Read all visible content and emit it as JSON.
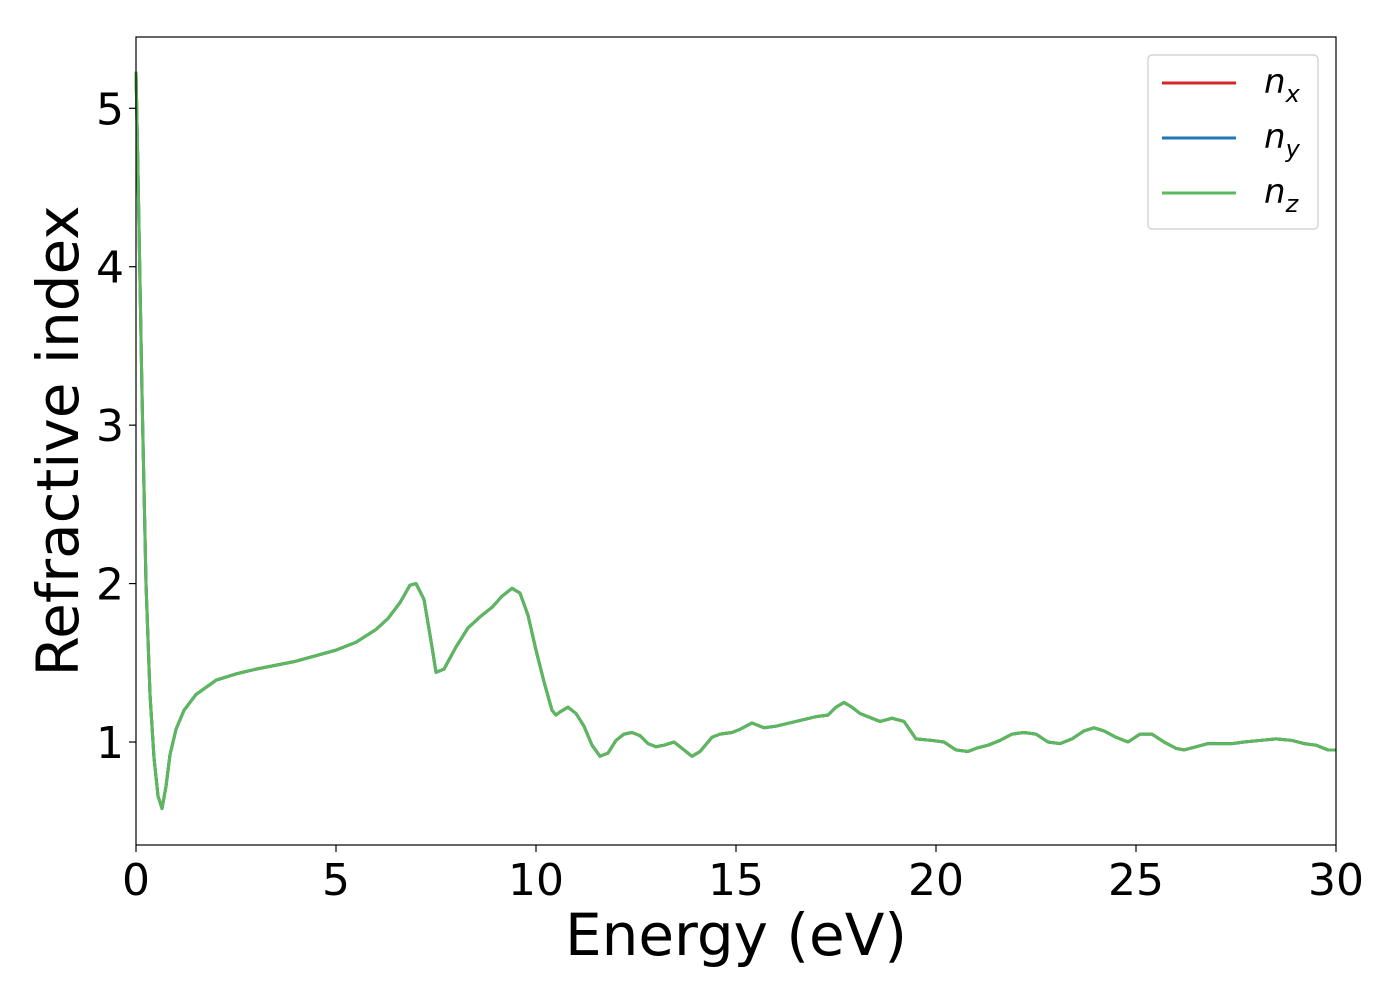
{
  "chart_data": {
    "type": "line",
    "title": "",
    "xlabel": "Energy (eV)",
    "ylabel": "Refractive index",
    "xlim": [
      0,
      30
    ],
    "ylim": [
      0.35,
      5.45
    ],
    "xticks": [
      0,
      5,
      10,
      15,
      20,
      25,
      30
    ],
    "xtick_labels": [
      "0",
      "5",
      "10",
      "15",
      "20",
      "25",
      "30"
    ],
    "yticks": [
      1,
      2,
      3,
      4,
      5
    ],
    "ytick_labels": [
      "1",
      "2",
      "3",
      "4",
      "5"
    ],
    "grid": false,
    "legend_position": "top-right",
    "x": [
      0.0,
      0.05,
      0.15,
      0.25,
      0.35,
      0.45,
      0.55,
      0.65,
      0.75,
      0.85,
      1.0,
      1.2,
      1.5,
      2.0,
      2.5,
      3.0,
      4.0,
      5.0,
      5.5,
      6.0,
      6.3,
      6.6,
      6.85,
      7.0,
      7.2,
      7.4,
      7.5,
      7.7,
      8.0,
      8.3,
      8.6,
      8.9,
      9.15,
      9.4,
      9.6,
      9.8,
      10.0,
      10.2,
      10.4,
      10.5,
      10.6,
      10.8,
      11.0,
      11.2,
      11.4,
      11.6,
      11.8,
      12.0,
      12.2,
      12.4,
      12.6,
      12.8,
      13.0,
      13.2,
      13.45,
      13.65,
      13.9,
      14.1,
      14.4,
      14.6,
      14.9,
      15.1,
      15.4,
      15.7,
      16.0,
      16.5,
      17.0,
      17.3,
      17.5,
      17.7,
      17.9,
      18.1,
      18.3,
      18.6,
      18.9,
      19.2,
      19.5,
      19.9,
      20.2,
      20.5,
      20.8,
      21.0,
      21.3,
      21.6,
      21.9,
      22.2,
      22.5,
      22.8,
      23.1,
      23.4,
      23.7,
      23.95,
      24.2,
      24.5,
      24.8,
      25.1,
      25.4,
      25.7,
      26.0,
      26.2,
      26.5,
      26.8,
      27.1,
      27.4,
      27.7,
      28.1,
      28.5,
      28.9,
      29.2,
      29.5,
      29.8,
      30.0
    ],
    "series": [
      {
        "name": "n_x",
        "color": "#d62728",
        "values": [
          5.23,
          4.6,
          3.2,
          2.0,
          1.3,
          0.9,
          0.66,
          0.58,
          0.72,
          0.92,
          1.08,
          1.2,
          1.3,
          1.39,
          1.43,
          1.46,
          1.51,
          1.58,
          1.63,
          1.71,
          1.78,
          1.88,
          1.99,
          2.0,
          1.9,
          1.6,
          1.44,
          1.46,
          1.6,
          1.72,
          1.79,
          1.85,
          1.92,
          1.97,
          1.94,
          1.8,
          1.58,
          1.38,
          1.2,
          1.17,
          1.19,
          1.22,
          1.18,
          1.1,
          0.98,
          0.91,
          0.93,
          1.01,
          1.05,
          1.06,
          1.04,
          0.99,
          0.97,
          0.98,
          1.0,
          0.96,
          0.91,
          0.94,
          1.03,
          1.05,
          1.06,
          1.08,
          1.12,
          1.09,
          1.1,
          1.13,
          1.16,
          1.17,
          1.22,
          1.25,
          1.22,
          1.18,
          1.16,
          1.13,
          1.15,
          1.13,
          1.02,
          1.01,
          1.0,
          0.95,
          0.94,
          0.96,
          0.98,
          1.01,
          1.05,
          1.06,
          1.05,
          1.0,
          0.99,
          1.02,
          1.07,
          1.09,
          1.07,
          1.03,
          1.0,
          1.05,
          1.05,
          1.0,
          0.96,
          0.95,
          0.97,
          0.99,
          0.99,
          0.99,
          1.0,
          1.01,
          1.02,
          1.01,
          0.99,
          0.98,
          0.95,
          0.95
        ]
      },
      {
        "name": "n_y",
        "color": "#1f77b4",
        "values": [
          5.23,
          4.6,
          3.2,
          2.0,
          1.3,
          0.9,
          0.66,
          0.58,
          0.72,
          0.92,
          1.08,
          1.2,
          1.3,
          1.39,
          1.43,
          1.46,
          1.51,
          1.58,
          1.63,
          1.71,
          1.78,
          1.88,
          1.99,
          2.0,
          1.9,
          1.6,
          1.44,
          1.46,
          1.6,
          1.72,
          1.79,
          1.85,
          1.92,
          1.97,
          1.94,
          1.8,
          1.58,
          1.38,
          1.2,
          1.17,
          1.19,
          1.22,
          1.18,
          1.1,
          0.98,
          0.91,
          0.93,
          1.01,
          1.05,
          1.06,
          1.04,
          0.99,
          0.97,
          0.98,
          1.0,
          0.96,
          0.91,
          0.94,
          1.03,
          1.05,
          1.06,
          1.08,
          1.12,
          1.09,
          1.1,
          1.13,
          1.16,
          1.17,
          1.22,
          1.25,
          1.22,
          1.18,
          1.16,
          1.13,
          1.15,
          1.13,
          1.02,
          1.01,
          1.0,
          0.95,
          0.94,
          0.96,
          0.98,
          1.01,
          1.05,
          1.06,
          1.05,
          1.0,
          0.99,
          1.02,
          1.07,
          1.09,
          1.07,
          1.03,
          1.0,
          1.05,
          1.05,
          1.0,
          0.96,
          0.95,
          0.97,
          0.99,
          0.99,
          0.99,
          1.0,
          1.01,
          1.02,
          1.01,
          0.99,
          0.98,
          0.95,
          0.95
        ]
      },
      {
        "name": "n_z",
        "color": "#5cb85c",
        "values": [
          5.23,
          4.6,
          3.2,
          2.0,
          1.3,
          0.9,
          0.66,
          0.58,
          0.72,
          0.92,
          1.08,
          1.2,
          1.3,
          1.39,
          1.43,
          1.46,
          1.51,
          1.58,
          1.63,
          1.71,
          1.78,
          1.88,
          1.99,
          2.0,
          1.9,
          1.6,
          1.44,
          1.46,
          1.6,
          1.72,
          1.79,
          1.85,
          1.92,
          1.97,
          1.94,
          1.8,
          1.58,
          1.38,
          1.2,
          1.17,
          1.19,
          1.22,
          1.18,
          1.1,
          0.98,
          0.91,
          0.93,
          1.01,
          1.05,
          1.06,
          1.04,
          0.99,
          0.97,
          0.98,
          1.0,
          0.96,
          0.91,
          0.94,
          1.03,
          1.05,
          1.06,
          1.08,
          1.12,
          1.09,
          1.1,
          1.13,
          1.16,
          1.17,
          1.22,
          1.25,
          1.22,
          1.18,
          1.16,
          1.13,
          1.15,
          1.13,
          1.02,
          1.01,
          1.0,
          0.95,
          0.94,
          0.96,
          0.98,
          1.01,
          1.05,
          1.06,
          1.05,
          1.0,
          0.99,
          1.02,
          1.07,
          1.09,
          1.07,
          1.03,
          1.0,
          1.05,
          1.05,
          1.0,
          0.96,
          0.95,
          0.97,
          0.99,
          0.99,
          0.99,
          1.0,
          1.01,
          1.02,
          1.01,
          0.99,
          0.98,
          0.95,
          0.95
        ]
      }
    ],
    "legend": [
      {
        "base": "n",
        "sub": "x",
        "color": "#d62728"
      },
      {
        "base": "n",
        "sub": "y",
        "color": "#1f77b4"
      },
      {
        "base": "n",
        "sub": "z",
        "color": "#5cb85c"
      }
    ]
  }
}
